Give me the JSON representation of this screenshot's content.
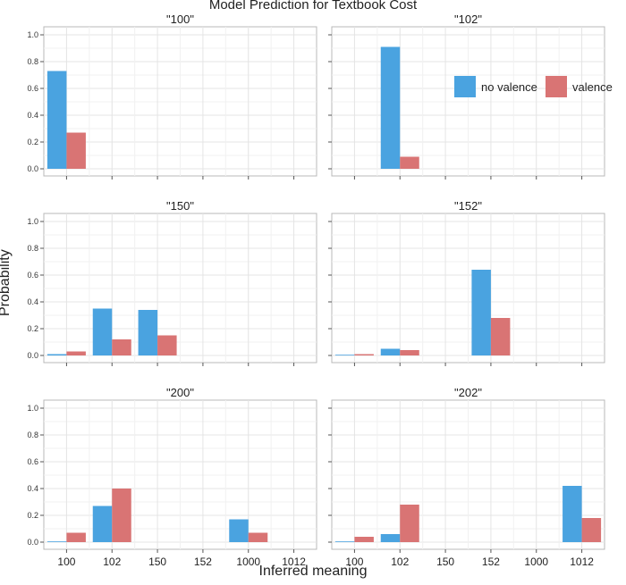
{
  "chart_data": {
    "type": "bar",
    "title": "Model Prediction for Textbook Cost",
    "xlabel": "Inferred meaning",
    "ylabel": "Probability",
    "categories": [
      "100",
      "102",
      "150",
      "152",
      "1000",
      "1012"
    ],
    "ylim": [
      0,
      1
    ],
    "yticks": [
      "0.0",
      "0.2",
      "0.4",
      "0.6",
      "0.8",
      "1.0"
    ],
    "grid": true,
    "legend_position": "top-right (inside \"102\" panel)",
    "series_names": [
      "no valence",
      "valence"
    ],
    "colors": {
      "no valence": "#4aa3e0",
      "valence": "#d97474"
    },
    "panels": [
      {
        "title": "\"100\"",
        "series": [
          {
            "name": "no valence",
            "values": [
              0.73,
              0,
              0,
              0,
              0,
              0
            ]
          },
          {
            "name": "valence",
            "values": [
              0.27,
              0,
              0,
              0,
              0,
              0
            ]
          }
        ]
      },
      {
        "title": "\"102\"",
        "series": [
          {
            "name": "no valence",
            "values": [
              0,
              0.91,
              0,
              0,
              0,
              0
            ]
          },
          {
            "name": "valence",
            "values": [
              0,
              0.09,
              0,
              0,
              0,
              0
            ]
          }
        ]
      },
      {
        "title": "\"150\"",
        "series": [
          {
            "name": "no valence",
            "values": [
              0.01,
              0.35,
              0.34,
              0,
              0,
              0
            ]
          },
          {
            "name": "valence",
            "values": [
              0.03,
              0.12,
              0.15,
              0,
              0,
              0
            ]
          }
        ]
      },
      {
        "title": "\"152\"",
        "series": [
          {
            "name": "no valence",
            "values": [
              0.005,
              0.05,
              0,
              0.64,
              0,
              0
            ]
          },
          {
            "name": "valence",
            "values": [
              0.01,
              0.04,
              0,
              0.28,
              0,
              0
            ]
          }
        ]
      },
      {
        "title": "\"200\"",
        "series": [
          {
            "name": "no valence",
            "values": [
              0.005,
              0.27,
              0,
              0,
              0.17,
              0
            ]
          },
          {
            "name": "valence",
            "values": [
              0.07,
              0.4,
              0,
              0,
              0.07,
              0
            ]
          }
        ]
      },
      {
        "title": "\"202\"",
        "series": [
          {
            "name": "no valence",
            "values": [
              0.005,
              0.06,
              0,
              0,
              0,
              0.42
            ]
          },
          {
            "name": "valence",
            "values": [
              0.04,
              0.28,
              0,
              0,
              0,
              0.18
            ]
          }
        ]
      }
    ]
  }
}
